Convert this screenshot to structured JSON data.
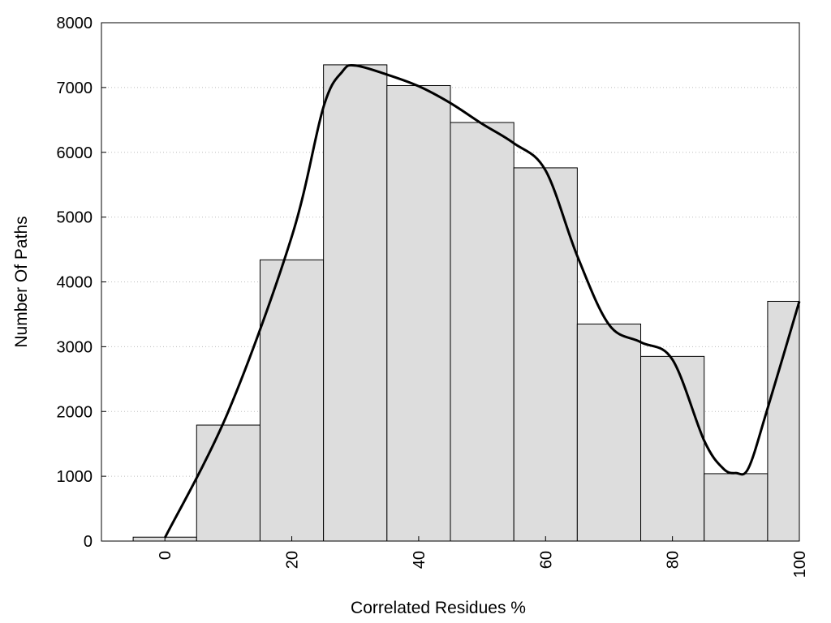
{
  "chart_data": {
    "type": "bar",
    "title": "",
    "xlabel": "Correlated Residues %",
    "ylabel": "Number Of Paths",
    "xlim": [
      -10,
      100
    ],
    "ylim": [
      0,
      8000
    ],
    "x_ticks": [
      0,
      20,
      40,
      60,
      80,
      100
    ],
    "y_ticks": [
      0,
      1000,
      2000,
      3000,
      4000,
      5000,
      6000,
      7000,
      8000
    ],
    "bin_width": 10,
    "categories": [
      0,
      10,
      20,
      30,
      40,
      50,
      60,
      70,
      80,
      90,
      100
    ],
    "values": [
      60,
      1790,
      4340,
      7350,
      7030,
      6460,
      5760,
      3350,
      2850,
      1040,
      3700
    ],
    "bar_color": "#dddddd",
    "grid": "horizontal dotted",
    "legend": "none",
    "smooth_curve": {
      "x": [
        0,
        10,
        20,
        25,
        28,
        30,
        35,
        40,
        45,
        50,
        55,
        60,
        65,
        70,
        75,
        80,
        85,
        88,
        90,
        92,
        95,
        100
      ],
      "y": [
        50,
        2000,
        4700,
        6700,
        7250,
        7340,
        7200,
        7020,
        6760,
        6440,
        6140,
        5720,
        4400,
        3340,
        3070,
        2800,
        1550,
        1120,
        1050,
        1130,
        2050,
        3700
      ],
      "color": "#000000"
    }
  }
}
